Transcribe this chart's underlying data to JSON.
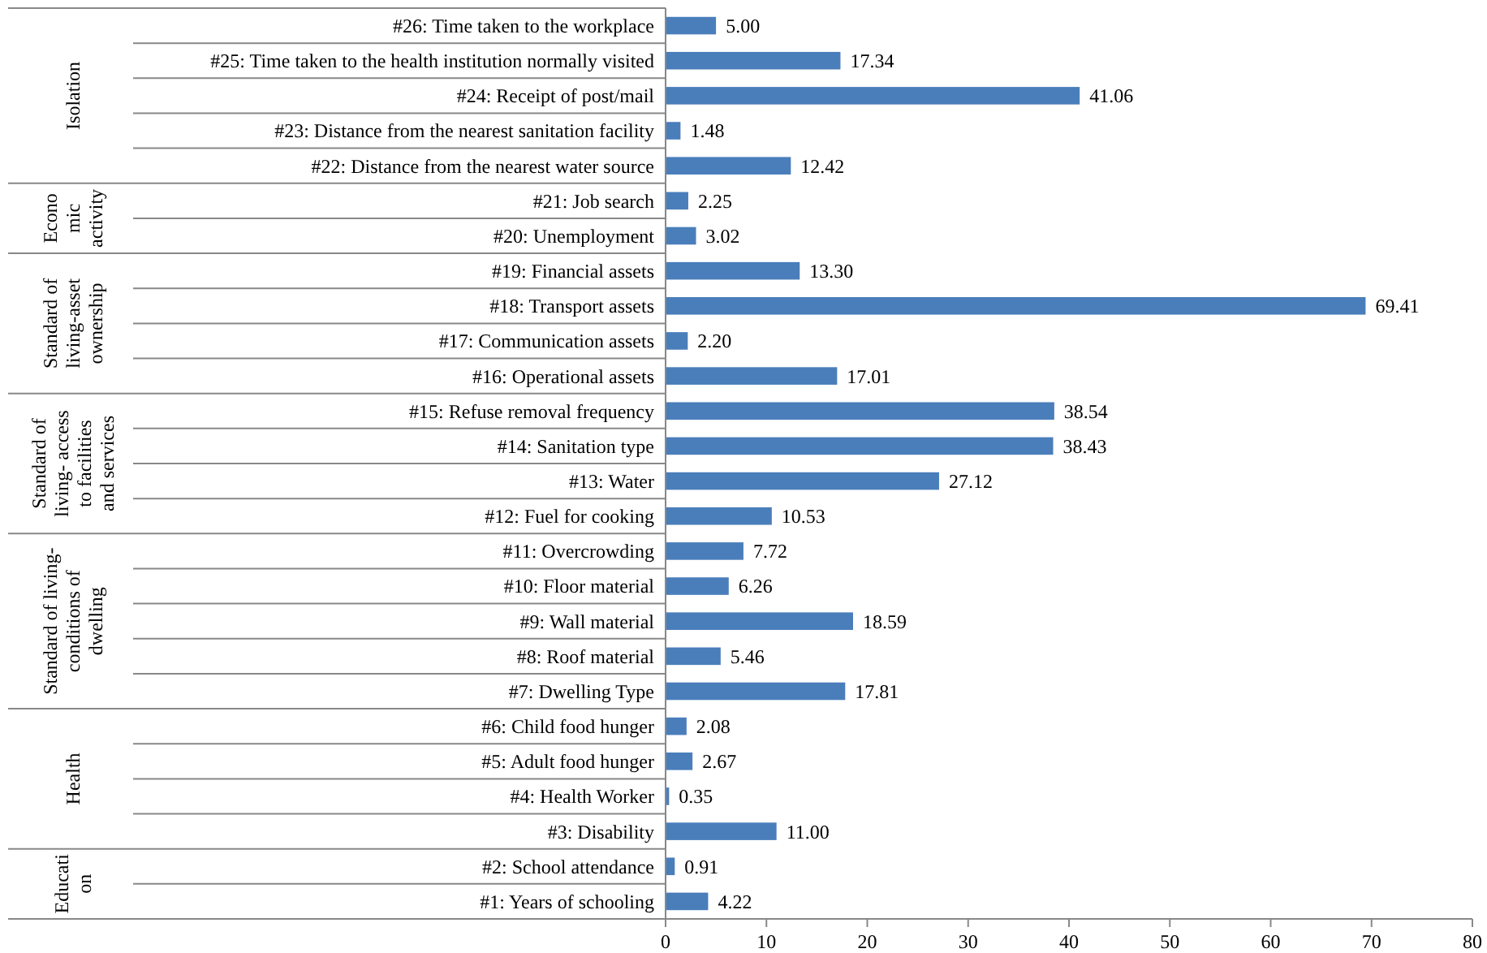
{
  "chart_data": {
    "type": "bar",
    "orientation": "horizontal",
    "categories": [
      "#26: Time taken to the workplace",
      "#25: Time taken to the health institution normally visited",
      "#24: Receipt of post/mail",
      "#23: Distance from the nearest sanitation facility",
      "#22: Distance from the nearest water source",
      "#21: Job search",
      "#20: Unemployment",
      "#19: Financial assets",
      "#18: Transport assets",
      "#17: Communication assets",
      "#16: Operational assets",
      "#15: Refuse removal frequency",
      "#14: Sanitation type",
      "#13: Water",
      "#12: Fuel for cooking",
      "#11: Overcrowding",
      "#10: Floor material",
      "#9: Wall material",
      "#8: Roof material",
      "#7: Dwelling Type",
      "#6: Child food hunger",
      "#5: Adult food hunger",
      "#4: Health Worker",
      "#3: Disability",
      "#2: School attendance",
      "#1: Years of schooling"
    ],
    "values": [
      5.0,
      17.34,
      41.06,
      1.48,
      12.42,
      2.25,
      3.02,
      13.3,
      69.41,
      2.2,
      17.01,
      38.54,
      38.43,
      27.12,
      10.53,
      7.72,
      6.26,
      18.59,
      5.46,
      17.81,
      2.08,
      2.67,
      0.35,
      11.0,
      0.91,
      4.22
    ],
    "value_labels": [
      "5.00",
      "17.34",
      "41.06",
      "1.48",
      "12.42",
      "2.25",
      "3.02",
      "13.30",
      "69.41",
      "2.20",
      "17.01",
      "38.54",
      "38.43",
      "27.12",
      "10.53",
      "7.72",
      "6.26",
      "18.59",
      "5.46",
      "17.81",
      "2.08",
      "2.67",
      "0.35",
      "11.00",
      "0.91",
      "4.22"
    ],
    "color": "#4a7ebb",
    "xlim": [
      0,
      80
    ],
    "xticks": [
      0,
      10,
      20,
      30,
      40,
      50,
      60,
      70,
      80
    ],
    "annotations": [
      "Isolation",
      "Economic activity",
      "Standard of living-asset ownership",
      "Standard of living- access to facilities and services",
      "Standard of living-conditions of dwelling",
      "Health",
      "Education"
    ]
  }
}
